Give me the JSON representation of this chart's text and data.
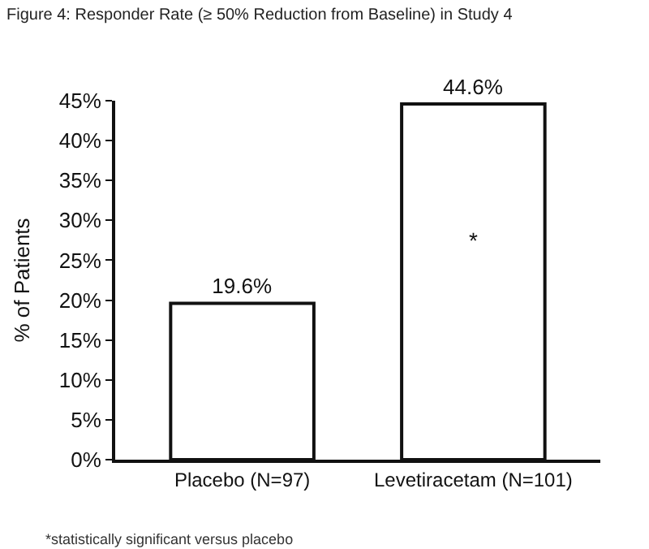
{
  "chart_data": {
    "type": "bar",
    "title": "Figure 4: Responder Rate (≥ 50% Reduction from Baseline) in Study 4",
    "ylabel": "% of Patients",
    "categories": [
      "Placebo (N=97)",
      "Levetiracetam (N=101)"
    ],
    "values": [
      19.6,
      44.6
    ],
    "value_labels": [
      "19.6%",
      "44.6%"
    ],
    "color": "#ffffff",
    "ylim": [
      0,
      45
    ],
    "yticks": [
      {
        "value": 0,
        "label": "0%"
      },
      {
        "value": 5,
        "label": "5%"
      },
      {
        "value": 10,
        "label": "10%"
      },
      {
        "value": 15,
        "label": "15%"
      },
      {
        "value": 20,
        "label": "20%"
      },
      {
        "value": 25,
        "label": "25%"
      },
      {
        "value": 30,
        "label": "30%"
      },
      {
        "value": 35,
        "label": "35%"
      },
      {
        "value": 40,
        "label": "40%"
      },
      {
        "value": 45,
        "label": "45%"
      }
    ],
    "annotations": [
      "*",
      "*statistically significant versus placebo"
    ],
    "legend": false
  }
}
